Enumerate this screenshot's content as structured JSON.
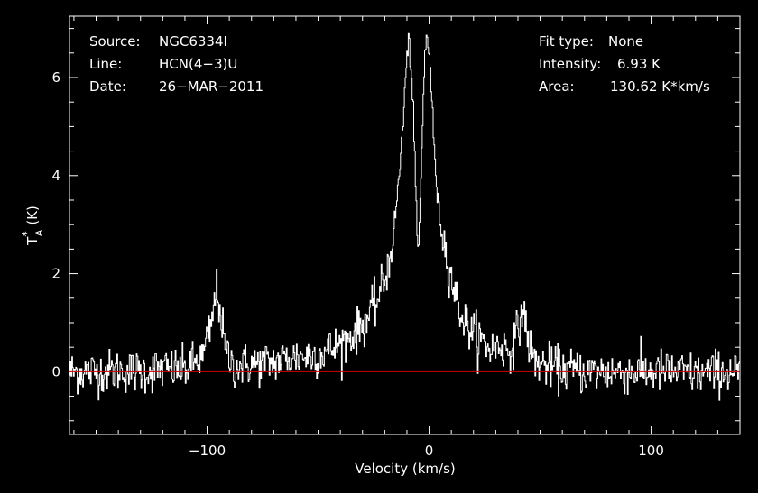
{
  "chart_data": {
    "type": "line",
    "xlabel": "Velocity (km/s)",
    "ylabel": "T",
    "ylabel_super": "*",
    "ylabel_sub": "A",
    "ylabel_unit": "(K)",
    "xlim": [
      -162,
      140
    ],
    "ylim": [
      -1.28,
      7.25
    ],
    "xticks": [
      -100,
      0,
      100
    ],
    "xtick_labels": [
      "−100",
      "0",
      "100"
    ],
    "yticks": [
      0,
      2,
      4,
      6
    ],
    "ytick_labels": [
      "0",
      "2",
      "4",
      "6"
    ],
    "grid": false,
    "baseline": 0,
    "colors": {
      "background": "#000000",
      "spectrum": "#ffffff",
      "baseline": "#cc0000",
      "axes": "#ffffff"
    },
    "info_left": [
      {
        "key": "Source:",
        "value": "NGC6334I"
      },
      {
        "key": "Line:",
        "value": "HCN(4−3)U"
      },
      {
        "key": "Date:",
        "value": "26−MAR−2011"
      }
    ],
    "info_right": [
      {
        "key": "Fit type:",
        "value": "None"
      },
      {
        "key": "Intensity:",
        "value": "6.93 K"
      },
      {
        "key": "Area:",
        "value": "130.62 K*km/s"
      }
    ],
    "series": [
      {
        "x": [
          -162,
          -150,
          -140,
          -130,
          -120,
          -110,
          -102,
          -98,
          -96,
          -94,
          -92,
          -88,
          -80,
          -70,
          -60,
          -50,
          -42,
          -36,
          -32,
          -28,
          -24,
          -20,
          -18,
          -16,
          -14,
          -12,
          -11,
          -10,
          -9,
          -8,
          -7,
          -6,
          -5,
          -4,
          -3,
          -2,
          -1,
          0,
          1,
          2,
          3,
          4,
          6,
          8,
          10,
          12,
          14,
          16,
          20,
          24,
          28,
          32,
          36,
          40,
          42,
          44,
          46,
          50,
          60,
          70,
          80,
          90,
          100,
          110,
          120,
          130,
          140
        ],
        "y": [
          0.0,
          0.0,
          0.02,
          0.0,
          0.05,
          0.05,
          0.3,
          1.0,
          1.7,
          1.2,
          0.4,
          0.1,
          0.15,
          0.2,
          0.3,
          0.35,
          0.5,
          0.7,
          0.85,
          1.1,
          1.4,
          1.9,
          2.3,
          2.9,
          3.8,
          5.0,
          5.8,
          6.5,
          6.7,
          6.0,
          5.0,
          3.2,
          2.4,
          3.6,
          5.2,
          6.6,
          6.85,
          6.5,
          5.6,
          4.6,
          4.0,
          3.3,
          2.8,
          2.3,
          1.9,
          1.5,
          1.2,
          1.0,
          0.8,
          0.6,
          0.45,
          0.55,
          0.4,
          0.85,
          1.3,
          0.8,
          0.3,
          0.15,
          0.05,
          0.0,
          0.0,
          0.0,
          0.0,
          0.0,
          -0.05,
          0.0,
          0.0
        ],
        "noise_rms": 0.22
      }
    ]
  }
}
